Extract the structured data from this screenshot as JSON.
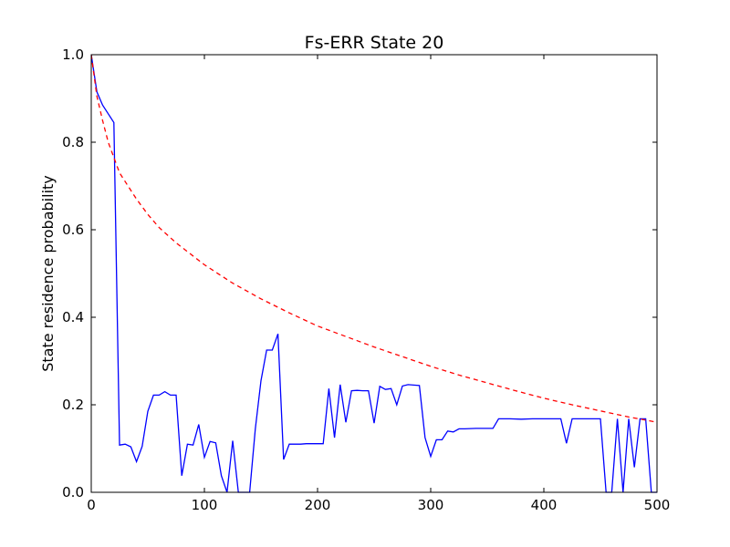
{
  "chart_data": {
    "type": "line",
    "title": "Fs-ERR State 20",
    "xlabel": "",
    "ylabel": "State residence probability",
    "xlim": [
      0,
      500
    ],
    "ylim": [
      0.0,
      1.0
    ],
    "grid": false,
    "x_ticks": [
      0,
      100,
      200,
      300,
      400,
      500
    ],
    "x_tick_labels": [
      "0",
      "100",
      "200",
      "300",
      "400",
      "500"
    ],
    "y_ticks": [
      0.0,
      0.2,
      0.4,
      0.6,
      0.8,
      1.0
    ],
    "y_tick_labels": [
      "0.0",
      "0.2",
      "0.4",
      "0.6",
      "0.8",
      "1.0"
    ],
    "series": [
      {
        "color": "#0000ff",
        "style": "solid",
        "x": [
          0,
          5,
          10,
          15,
          20,
          25,
          30,
          35,
          40,
          45,
          50,
          55,
          60,
          65,
          70,
          75,
          80,
          85,
          90,
          95,
          100,
          105,
          110,
          115,
          120,
          125,
          130,
          135,
          140,
          145,
          150,
          155,
          160,
          165,
          170,
          175,
          180,
          185,
          190,
          195,
          200,
          205,
          210,
          215,
          220,
          225,
          230,
          235,
          240,
          245,
          250,
          255,
          260,
          265,
          270,
          275,
          280,
          285,
          290,
          295,
          300,
          305,
          310,
          315,
          320,
          325,
          330,
          340,
          350,
          355,
          360,
          370,
          380,
          390,
          400,
          410,
          415,
          420,
          425,
          430,
          440,
          450,
          455,
          460,
          465,
          470,
          475,
          480,
          485,
          490,
          495,
          500
        ],
        "y": [
          1.0,
          0.915,
          0.885,
          0.865,
          0.845,
          0.108,
          0.11,
          0.104,
          0.07,
          0.105,
          0.185,
          0.222,
          0.222,
          0.23,
          0.222,
          0.222,
          0.038,
          0.11,
          0.108,
          0.155,
          0.08,
          0.116,
          0.113,
          0.038,
          0.0,
          0.118,
          0.0,
          0.0,
          0.0,
          0.145,
          0.255,
          0.325,
          0.325,
          0.362,
          0.075,
          0.11,
          0.11,
          0.11,
          0.111,
          0.111,
          0.111,
          0.111,
          0.237,
          0.125,
          0.246,
          0.16,
          0.232,
          0.233,
          0.232,
          0.232,
          0.158,
          0.242,
          0.235,
          0.237,
          0.2,
          0.243,
          0.246,
          0.245,
          0.244,
          0.125,
          0.082,
          0.12,
          0.12,
          0.14,
          0.138,
          0.145,
          0.145,
          0.146,
          0.146,
          0.146,
          0.168,
          0.168,
          0.167,
          0.168,
          0.168,
          0.168,
          0.168,
          0.112,
          0.168,
          0.168,
          0.168,
          0.168,
          0.0,
          0.0,
          0.168,
          0.0,
          0.168,
          0.057,
          0.168,
          0.168,
          0.0,
          0.0
        ]
      },
      {
        "color": "#ff0000",
        "style": "dashed",
        "x": [
          0,
          5,
          10,
          15,
          20,
          25,
          30,
          40,
          50,
          60,
          75,
          90,
          100,
          125,
          150,
          175,
          200,
          225,
          250,
          275,
          300,
          325,
          350,
          375,
          400,
          425,
          450,
          475,
          490,
          500
        ],
        "y": [
          1.0,
          0.905,
          0.85,
          0.8,
          0.765,
          0.73,
          0.71,
          0.67,
          0.635,
          0.605,
          0.57,
          0.54,
          0.52,
          0.478,
          0.442,
          0.41,
          0.38,
          0.356,
          0.332,
          0.31,
          0.288,
          0.268,
          0.25,
          0.232,
          0.215,
          0.2,
          0.186,
          0.172,
          0.165,
          0.16
        ]
      }
    ]
  }
}
